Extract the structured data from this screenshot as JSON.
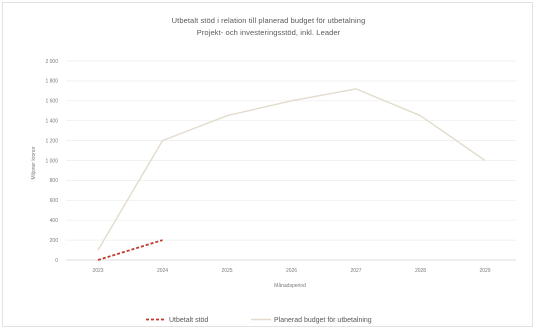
{
  "chart_data": {
    "type": "line",
    "title": "Utbetalt stöd i relation till planerad budget för utbetalning",
    "subtitle": "Projekt- och investeringsstöd, inkl. Leader",
    "xlabel": "Månadsperiod",
    "ylabel": "Miljoner kronor",
    "categories": [
      "2023",
      "2024",
      "2025",
      "2026",
      "2027",
      "2028",
      "2029"
    ],
    "ylim": [
      0,
      2000
    ],
    "yticks": [
      0,
      200,
      400,
      600,
      800,
      1000,
      1200,
      1400,
      1600,
      1800,
      2000
    ],
    "ytick_labels": [
      "0",
      "200",
      "400",
      "600",
      "800",
      "1 000",
      "1 200",
      "1 400",
      "1 600",
      "1 800",
      "2 000"
    ],
    "grid": true,
    "legend": "bottom",
    "series": [
      {
        "name": "Utbetalt stöd",
        "color": "#c0392b",
        "style": "dashed",
        "values": [
          0,
          200,
          null,
          null,
          null,
          null,
          null
        ]
      },
      {
        "name": "Planerad budget för utbetalning",
        "color": "#e3dccd",
        "style": "solid",
        "values": [
          100,
          1200,
          1450,
          1600,
          1720,
          1450,
          1000
        ]
      }
    ]
  }
}
